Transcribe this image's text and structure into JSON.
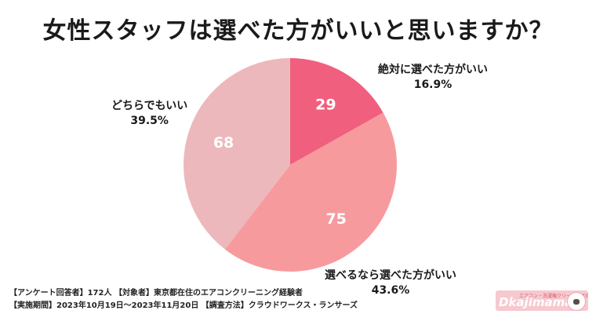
{
  "title": "女性スタッフは選べた方がいいと思いますか？",
  "chart_data": {
    "type": "pie",
    "slices": [
      {
        "label": "絶対に選べた方がいい",
        "count": 29,
        "percent": "16.9%",
        "color": "#f0607e"
      },
      {
        "label": "選べるなら選べた方がいい",
        "count": 75,
        "percent": "43.6%",
        "color": "#f79a9e"
      },
      {
        "label": "どちらでもいい",
        "count": 68,
        "percent": "39.5%",
        "color": "#edb8bb"
      }
    ]
  },
  "footer": {
    "line1": "【アンケート回答者】172人 【対象者】東京都在住のエアコンクリーニング経験者",
    "line2": "【実施期間】2023年10月19日〜2023年11月20日 【調査方法】クラウドワークス・ランサーズ"
  },
  "logo": {
    "tagline": "エアコン・洗濯機クリーニングのプロ",
    "text": "Dkajimama",
    "icon": "sheep-icon"
  }
}
